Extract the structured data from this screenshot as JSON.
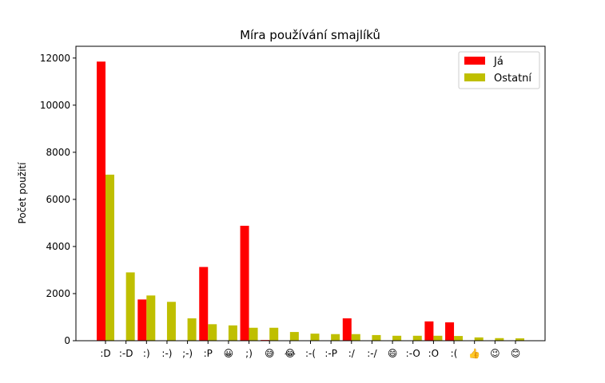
{
  "chart_data": {
    "type": "bar",
    "title": "Míra používání smajlíků",
    "xlabel": "",
    "ylabel": "Počet použití",
    "ylim": [
      0,
      12500
    ],
    "yticks": [
      0,
      2000,
      4000,
      6000,
      8000,
      10000,
      12000
    ],
    "grid": false,
    "legend_position": "top-right",
    "categories": [
      ":D",
      ":-D",
      ":)",
      ":-)",
      ";-)",
      ":P",
      "😀",
      ";)",
      "😅",
      "😂",
      ":-(",
      ":-P",
      ":/",
      ":-/",
      "😄",
      ":-O",
      ":O",
      ":(",
      "👍",
      "😉",
      "😊"
    ],
    "series": [
      {
        "name": "Já",
        "color": "#ff0000",
        "values": [
          11850,
          0,
          1750,
          0,
          0,
          3130,
          0,
          4880,
          30,
          0,
          0,
          0,
          950,
          0,
          0,
          0,
          820,
          780,
          0,
          0,
          0
        ]
      },
      {
        "name": "Ostatní",
        "color": "#bfbf00",
        "values": [
          7050,
          2900,
          1920,
          1650,
          950,
          700,
          650,
          550,
          550,
          370,
          300,
          280,
          280,
          240,
          210,
          210,
          210,
          200,
          140,
          110,
          100
        ]
      }
    ]
  }
}
